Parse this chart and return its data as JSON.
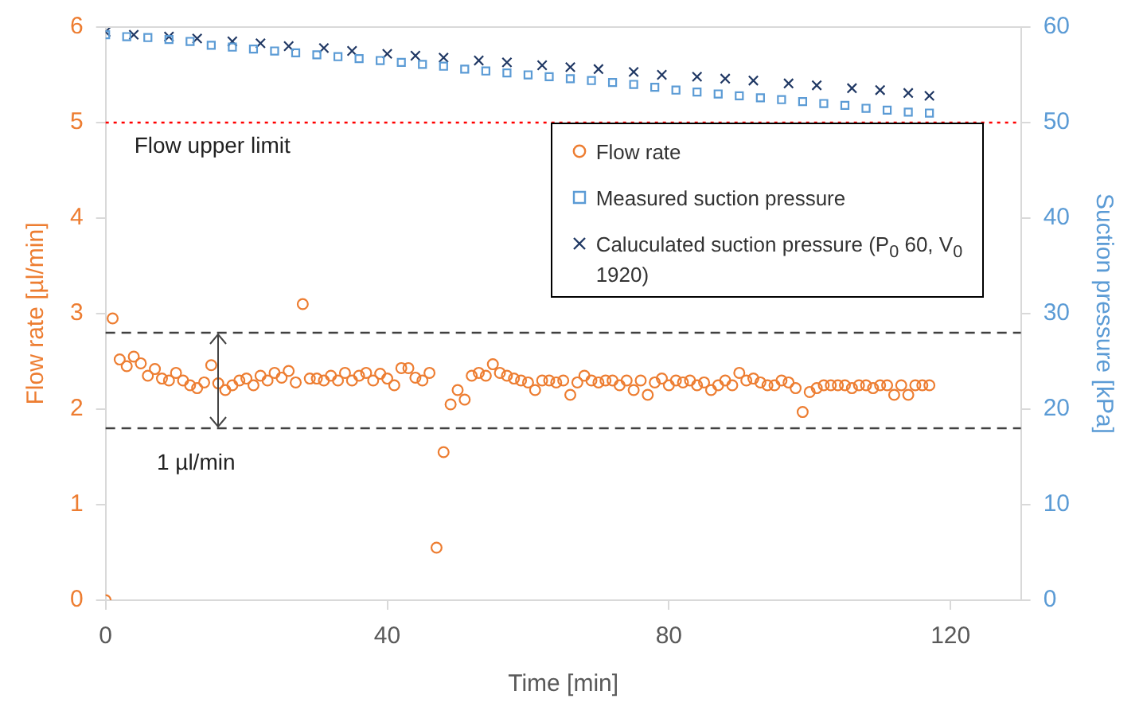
{
  "chart_data": {
    "type": "scatter",
    "xlabel": "Time [min]",
    "ylabel": "Flow rate [µl/min]",
    "y2label": "Suction pressure [kPa]",
    "xlim": [
      0,
      130
    ],
    "xticks": [
      0,
      40,
      80,
      120
    ],
    "ylim": [
      0,
      6
    ],
    "yticks": [
      0,
      1,
      2,
      3,
      4,
      5,
      6
    ],
    "y2lim": [
      0,
      60
    ],
    "y2ticks": [
      0,
      10,
      20,
      30,
      40,
      50,
      60
    ],
    "grid": false,
    "legend": "top right",
    "series": [
      {
        "name": "Flow rate",
        "color": "#ed7d31",
        "marker": "circle",
        "x": [
          0,
          1,
          2,
          3,
          4,
          5,
          6,
          7,
          8,
          9,
          10,
          11,
          12,
          13,
          14,
          15,
          16,
          17,
          18,
          19,
          20,
          21,
          22,
          23,
          24,
          25,
          26,
          27,
          28,
          29,
          30,
          31,
          32,
          33,
          34,
          35,
          36,
          37,
          38,
          39,
          40,
          41,
          42,
          43,
          44,
          45,
          46,
          47,
          48,
          49,
          50,
          51,
          52,
          53,
          54,
          55,
          56,
          57,
          58,
          59,
          60,
          61,
          62,
          63,
          64,
          65,
          66,
          67,
          68,
          69,
          70,
          71,
          72,
          73,
          74,
          75,
          76,
          77,
          78,
          79,
          80,
          81,
          82,
          83,
          84,
          85,
          86,
          87,
          88,
          89,
          90,
          91,
          92,
          93,
          94,
          95,
          96,
          97,
          98,
          99,
          100,
          101,
          102,
          103,
          104,
          105,
          106,
          107,
          108,
          109,
          110,
          111,
          112,
          113,
          114,
          115,
          116,
          117
        ],
        "values": [
          0,
          2.95,
          2.52,
          2.45,
          2.55,
          2.48,
          2.35,
          2.42,
          2.32,
          2.3,
          2.38,
          2.3,
          2.25,
          2.22,
          2.28,
          2.46,
          2.27,
          2.2,
          2.25,
          2.3,
          2.32,
          2.25,
          2.35,
          2.3,
          2.38,
          2.33,
          2.4,
          2.28,
          3.1,
          2.32,
          2.32,
          2.3,
          2.35,
          2.3,
          2.38,
          2.3,
          2.35,
          2.38,
          2.3,
          2.37,
          2.32,
          2.25,
          2.43,
          2.43,
          2.33,
          2.3,
          2.38,
          0.55,
          1.55,
          2.05,
          2.2,
          2.1,
          2.35,
          2.38,
          2.35,
          2.47,
          2.38,
          2.35,
          2.32,
          2.3,
          2.28,
          2.2,
          2.3,
          2.3,
          2.28,
          2.3,
          2.15,
          2.28,
          2.35,
          2.3,
          2.28,
          2.3,
          2.3,
          2.25,
          2.3,
          2.2,
          2.3,
          2.15,
          2.28,
          2.32,
          2.25,
          2.3,
          2.28,
          2.3,
          2.25,
          2.28,
          2.2,
          2.25,
          2.3,
          2.25,
          2.38,
          2.3,
          2.32,
          2.28,
          2.25,
          2.25,
          2.3,
          2.28,
          2.22,
          1.97,
          2.18,
          2.22,
          2.25,
          2.25,
          2.25,
          2.25,
          2.22,
          2.25,
          2.25,
          2.22,
          2.25,
          2.25,
          2.15,
          2.25,
          2.15,
          2.25,
          2.25,
          2.25
        ]
      },
      {
        "name": "Measured suction pressure",
        "color": "#5b9bd5",
        "marker": "square",
        "axis": "y2",
        "x": [
          0,
          3,
          6,
          9,
          12,
          15,
          18,
          21,
          24,
          27,
          30,
          33,
          36,
          39,
          42,
          45,
          48,
          51,
          54,
          57,
          60,
          63,
          66,
          69,
          72,
          75,
          78,
          81,
          84,
          87,
          90,
          93,
          96,
          99,
          102,
          105,
          108,
          111,
          114,
          117
        ],
        "values": [
          59.2,
          59.0,
          58.9,
          58.7,
          58.5,
          58.1,
          57.9,
          57.7,
          57.5,
          57.3,
          57.1,
          56.9,
          56.7,
          56.5,
          56.3,
          56.1,
          55.9,
          55.6,
          55.4,
          55.2,
          55.0,
          54.8,
          54.6,
          54.4,
          54.2,
          54.0,
          53.7,
          53.4,
          53.2,
          53.0,
          52.8,
          52.6,
          52.4,
          52.2,
          52.0,
          51.8,
          51.5,
          51.3,
          51.1,
          51.0
        ]
      },
      {
        "name": "Caluculated suction pressure (P$_{0}$ 60, V$_{0}$ 1920)",
        "color": "#203864",
        "marker": "cross",
        "axis": "y2",
        "x": [
          0,
          4,
          9,
          13,
          18,
          22,
          26,
          31,
          35,
          40,
          44,
          48,
          53,
          57,
          62,
          66,
          70,
          75,
          79,
          84,
          88,
          92,
          97,
          101,
          106,
          110,
          114,
          117
        ],
        "values": [
          59.5,
          59.2,
          59.0,
          58.8,
          58.5,
          58.3,
          58.0,
          57.8,
          57.5,
          57.2,
          57.0,
          56.8,
          56.5,
          56.3,
          56.0,
          55.8,
          55.6,
          55.3,
          55.0,
          54.8,
          54.6,
          54.4,
          54.1,
          53.9,
          53.6,
          53.4,
          53.1,
          52.8
        ]
      }
    ],
    "ref_lines": [
      {
        "axis": "y",
        "value": 5,
        "label": "Flow upper limit",
        "color": "#ff0000",
        "line_style": "dotted"
      },
      {
        "axis": "y",
        "value": 2.8,
        "label": null,
        "color": "#404040",
        "line_style": "dashed"
      },
      {
        "axis": "y",
        "value": 1.8,
        "label": null,
        "color": "#404040",
        "line_style": "dashed"
      }
    ],
    "annotations": [
      {
        "text": "1 µl/min",
        "x": 16,
        "y": 1.8
      }
    ]
  }
}
